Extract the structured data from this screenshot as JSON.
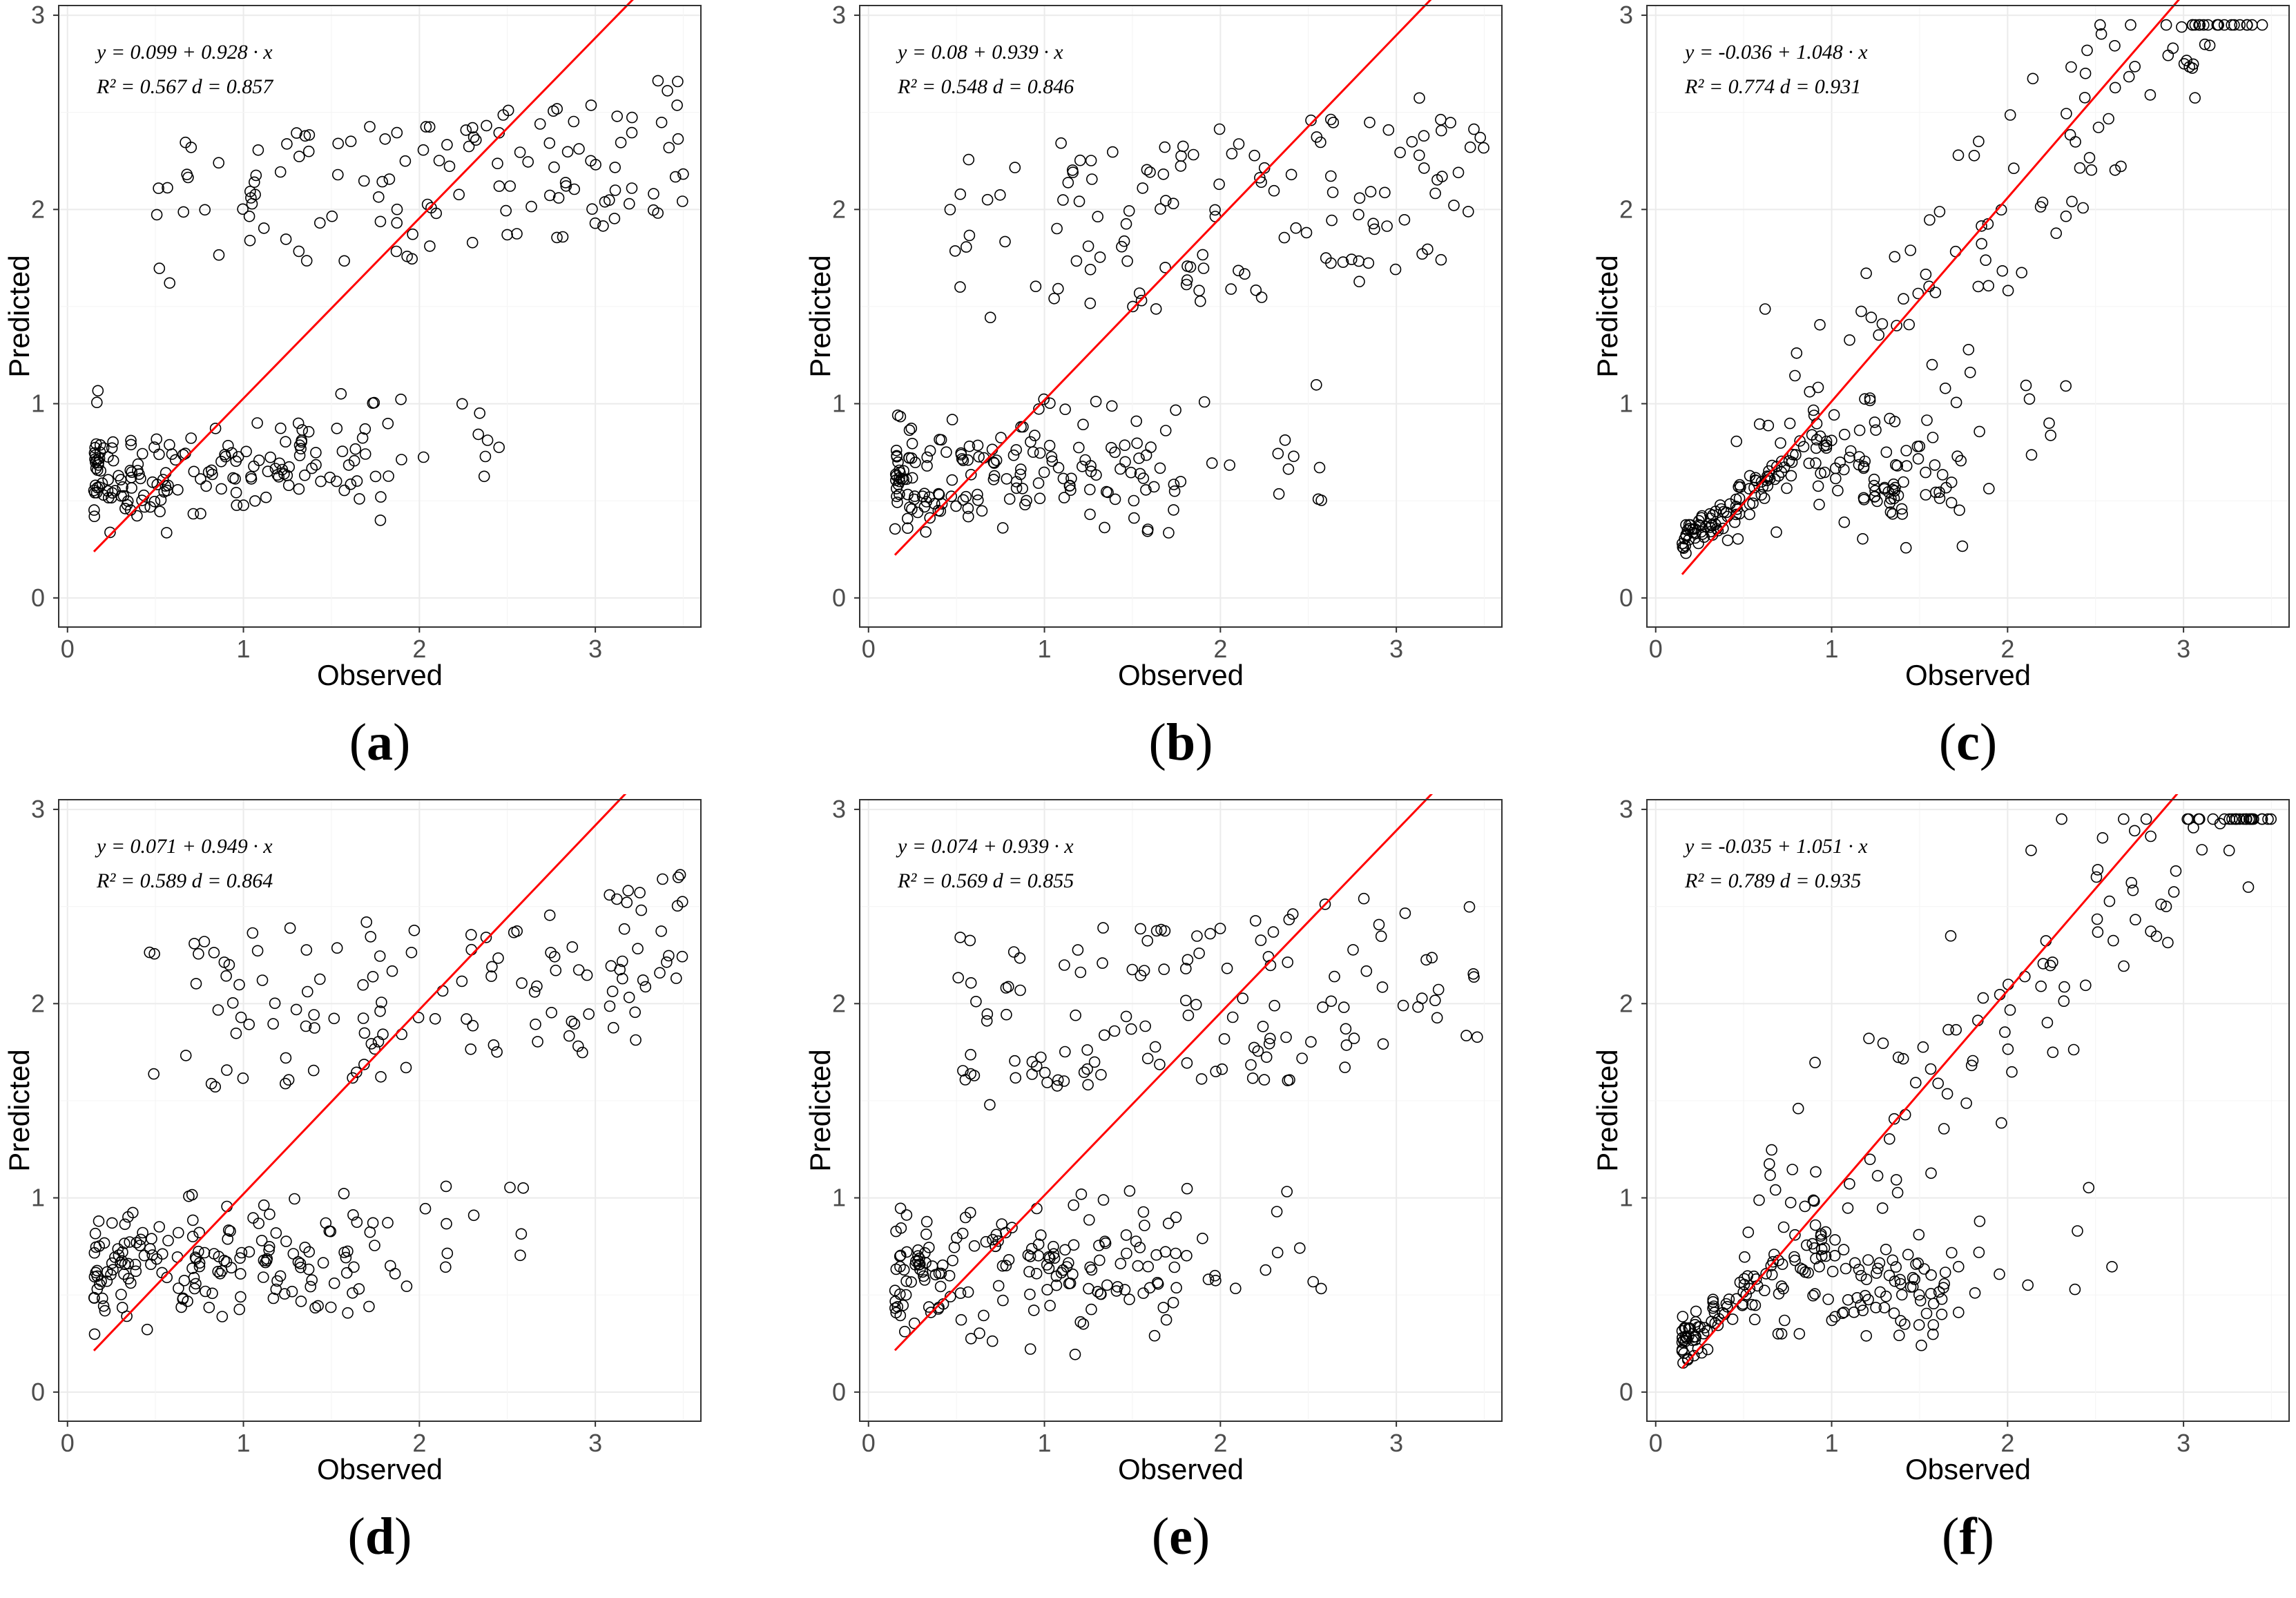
{
  "chart_data": [
    {
      "type": "scatter",
      "panel_label": "a",
      "letter": "a",
      "xlabel": "Observed",
      "ylabel": "Predicted",
      "xlim": [
        -0.05,
        3.6
      ],
      "ylim": [
        -0.15,
        3.05
      ],
      "xticks": [
        "0",
        "1",
        "2",
        "3"
      ],
      "yticks": [
        "0",
        "1",
        "2",
        "3"
      ],
      "equation": "y = 0.099 + 0.928 · x",
      "stats": "R² = 0.567  d = 0.857",
      "fit": {
        "intercept": 0.099,
        "slope": 0.928,
        "x_range": [
          0.15,
          3.45
        ]
      },
      "cluster_params": {
        "low_c": 0.64,
        "low_s": 0.12,
        "low_max": 1.8,
        "high_base": 1.7,
        "high_spread": 0.75,
        "seed": 11
      },
      "regression_color": "#ff0000"
    },
    {
      "type": "scatter",
      "panel_label": "b",
      "letter": "b",
      "xlabel": "Observed",
      "ylabel": "Predicted",
      "xlim": [
        -0.05,
        3.6
      ],
      "ylim": [
        -0.15,
        3.05
      ],
      "xticks": [
        "0",
        "1",
        "2",
        "3"
      ],
      "yticks": [
        "0",
        "1",
        "2",
        "3"
      ],
      "equation": "y = 0.08 + 0.939 · x",
      "stats": "R² = 0.548  d = 0.846",
      "fit": {
        "intercept": 0.08,
        "slope": 0.939,
        "x_range": [
          0.15,
          3.45
        ]
      },
      "cluster_params": {
        "low_c": 0.65,
        "low_s": 0.14,
        "low_max": 1.75,
        "high_base": 1.5,
        "high_spread": 0.9,
        "seed": 23
      },
      "regression_color": "#ff0000"
    },
    {
      "type": "scatter",
      "panel_label": "c",
      "letter": "c",
      "xlabel": "Observed",
      "ylabel": "Predicted",
      "xlim": [
        -0.05,
        3.6
      ],
      "ylim": [
        -0.15,
        3.05
      ],
      "xticks": [
        "0",
        "1",
        "2",
        "3"
      ],
      "yticks": [
        "0",
        "1",
        "2",
        "3"
      ],
      "equation": "y = -0.036 + 1.048 · x",
      "stats": "R² = 0.774  d = 0.931",
      "fit": {
        "intercept": -0.036,
        "slope": 1.048,
        "x_range": [
          0.15,
          3.45
        ]
      },
      "cluster_params": {
        "low_c": 0.55,
        "low_s": 0.12,
        "low_max": 1.75,
        "high_base": 1.55,
        "high_spread": 0.9,
        "seed": 37,
        "tight": true
      },
      "regression_color": "#ff0000"
    },
    {
      "type": "scatter",
      "panel_label": "d",
      "letter": "d",
      "xlabel": "Observed",
      "ylabel": "Predicted",
      "xlim": [
        -0.05,
        3.6
      ],
      "ylim": [
        -0.15,
        3.05
      ],
      "xticks": [
        "0",
        "1",
        "2",
        "3"
      ],
      "yticks": [
        "0",
        "1",
        "2",
        "3"
      ],
      "equation": "y = 0.071 + 0.949 · x",
      "stats": "R² = 0.589  d = 0.864",
      "fit": {
        "intercept": 0.071,
        "slope": 0.949,
        "x_range": [
          0.15,
          3.45
        ]
      },
      "cluster_params": {
        "low_c": 0.65,
        "low_s": 0.14,
        "low_max": 1.75,
        "high_base": 1.6,
        "high_spread": 0.85,
        "seed": 41
      },
      "regression_color": "#ff0000"
    },
    {
      "type": "scatter",
      "panel_label": "e",
      "letter": "e",
      "xlabel": "Observed",
      "ylabel": "Predicted",
      "xlim": [
        -0.05,
        3.6
      ],
      "ylim": [
        -0.15,
        3.05
      ],
      "xticks": [
        "0",
        "1",
        "2",
        "3"
      ],
      "yticks": [
        "0",
        "1",
        "2",
        "3"
      ],
      "equation": "y = 0.074 + 0.939 · x",
      "stats": "R² = 0.569  d = 0.855",
      "fit": {
        "intercept": 0.074,
        "slope": 0.939,
        "x_range": [
          0.15,
          3.45
        ]
      },
      "cluster_params": {
        "low_c": 0.62,
        "low_s": 0.15,
        "low_max": 1.75,
        "high_base": 1.55,
        "high_spread": 0.9,
        "seed": 53
      },
      "regression_color": "#ff0000"
    },
    {
      "type": "scatter",
      "panel_label": "f",
      "letter": "f",
      "xlabel": "Observed",
      "ylabel": "Predicted",
      "xlim": [
        -0.05,
        3.6
      ],
      "ylim": [
        -0.15,
        3.05
      ],
      "xticks": [
        "0",
        "1",
        "2",
        "3"
      ],
      "yticks": [
        "0",
        "1",
        "2",
        "3"
      ],
      "equation": "y = -0.035 + 1.051 · x",
      "stats": "R² = 0.789  d = 0.935",
      "fit": {
        "intercept": -0.035,
        "slope": 1.051,
        "x_range": [
          0.15,
          3.45
        ]
      },
      "cluster_params": {
        "low_c": 0.5,
        "low_s": 0.12,
        "low_max": 1.75,
        "high_base": 1.6,
        "high_spread": 0.9,
        "seed": 67,
        "tight": true
      },
      "regression_color": "#ff0000"
    }
  ]
}
